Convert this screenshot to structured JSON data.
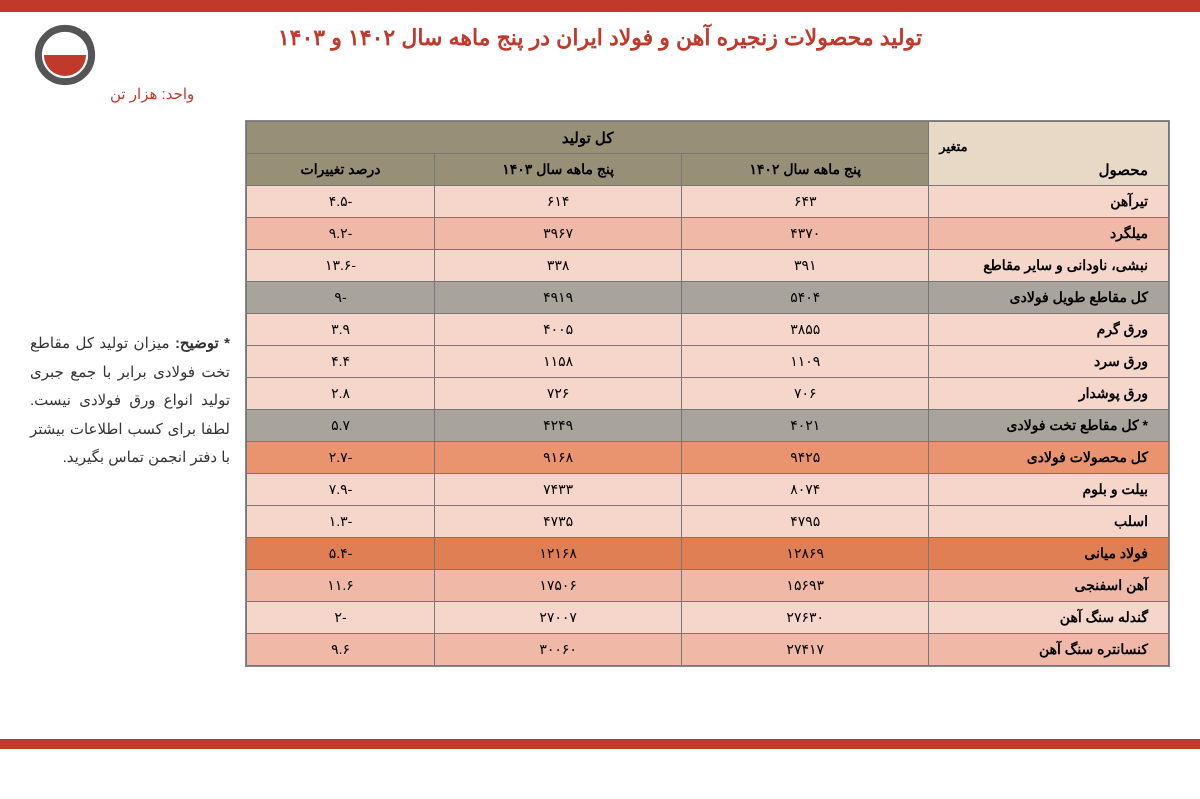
{
  "title": "تولید محصولات زنجیره آهن و فولاد ایران در پنج ماهه سال ۱۴۰۲ و ۱۴۰۳",
  "unit": "واحد: هزار تن",
  "note_label": "* توضیح:",
  "note_body": "میزان تولید کل مقاطع تخت فولادی برابر با جمع جبری تولید انواع ورق فولادی نیست. لطفا برای کسب اطلاعات بیشتر با دفتر انجمن تماس بگیرید.",
  "headers": {
    "corner_var": "متغیر",
    "corner_prod": "محصول",
    "super": "کل تولید",
    "y1402": "پنج ماهه سال ۱۴۰۲",
    "y1403": "پنج ماهه سال ۱۴۰۳",
    "pct": "درصد تغییرات"
  },
  "row_colors": {
    "light_pink": "#f6d5cb",
    "salmon": "#f0b9a7",
    "gray": "#a8a39b",
    "orange": "#e9946f",
    "deep_orange": "#e07e54",
    "header_tan": "#e8d9c7",
    "header_olive": "#989076"
  },
  "rows": [
    {
      "product": "تیرآهن",
      "y1402": "۶۴۳",
      "y1403": "۶۱۴",
      "pct": "-۴.۵",
      "bg": "#f6d5cb"
    },
    {
      "product": "میلگرد",
      "y1402": "۴۳۷۰",
      "y1403": "۳۹۶۷",
      "pct": "-۹.۲",
      "bg": "#f0b9a7"
    },
    {
      "product": "نبشی، ناودانی و سایر مقاطع",
      "y1402": "۳۹۱",
      "y1403": "۳۳۸",
      "pct": "-۱۳.۶",
      "bg": "#f6d5cb"
    },
    {
      "product": "کل مقاطع طویل فولادی",
      "y1402": "۵۴۰۴",
      "y1403": "۴۹۱۹",
      "pct": "-۹",
      "bg": "#a8a39b"
    },
    {
      "product": "ورق گرم",
      "y1402": "۳۸۵۵",
      "y1403": "۴۰۰۵",
      "pct": "۳.۹",
      "bg": "#f6d5cb"
    },
    {
      "product": "ورق سرد",
      "y1402": "۱۱۰۹",
      "y1403": "۱۱۵۸",
      "pct": "۴.۴",
      "bg": "#f6d5cb"
    },
    {
      "product": "ورق پوشدار",
      "y1402": "۷۰۶",
      "y1403": "۷۲۶",
      "pct": "۲.۸",
      "bg": "#f6d5cb"
    },
    {
      "product": "* کل مقاطع تخت فولادی",
      "y1402": "۴۰۲۱",
      "y1403": "۴۲۴۹",
      "pct": "۵.۷",
      "bg": "#a8a39b"
    },
    {
      "product": "کل محصولات فولادی",
      "y1402": "۹۴۲۵",
      "y1403": "۹۱۶۸",
      "pct": "-۲.۷",
      "bg": "#e9946f"
    },
    {
      "product": "بیلت و بلوم",
      "y1402": "۸۰۷۴",
      "y1403": "۷۴۳۳",
      "pct": "-۷.۹",
      "bg": "#f6d5cb"
    },
    {
      "product": "اسلب",
      "y1402": "۴۷۹۵",
      "y1403": "۴۷۳۵",
      "pct": "-۱.۳",
      "bg": "#f6d5cb"
    },
    {
      "product": "فولاد میانی",
      "y1402": "۱۲۸۶۹",
      "y1403": "۱۲۱۶۸",
      "pct": "-۵.۴",
      "bg": "#e07e54"
    },
    {
      "product": "آهن اسفنجی",
      "y1402": "۱۵۶۹۳",
      "y1403": "۱۷۵۰۶",
      "pct": "۱۱.۶",
      "bg": "#f0b9a7"
    },
    {
      "product": "گندله سنگ آهن",
      "y1402": "۲۷۶۳۰",
      "y1403": "۲۷۰۰۷",
      "pct": "-۲",
      "bg": "#f6d5cb"
    },
    {
      "product": "کنسانتره سنگ آهن",
      "y1402": "۲۷۴۱۷",
      "y1403": "۳۰۰۶۰",
      "pct": "۹.۶",
      "bg": "#f0b9a7"
    }
  ],
  "logo_colors": {
    "ring": "#555555",
    "fill": "#c0392b"
  }
}
